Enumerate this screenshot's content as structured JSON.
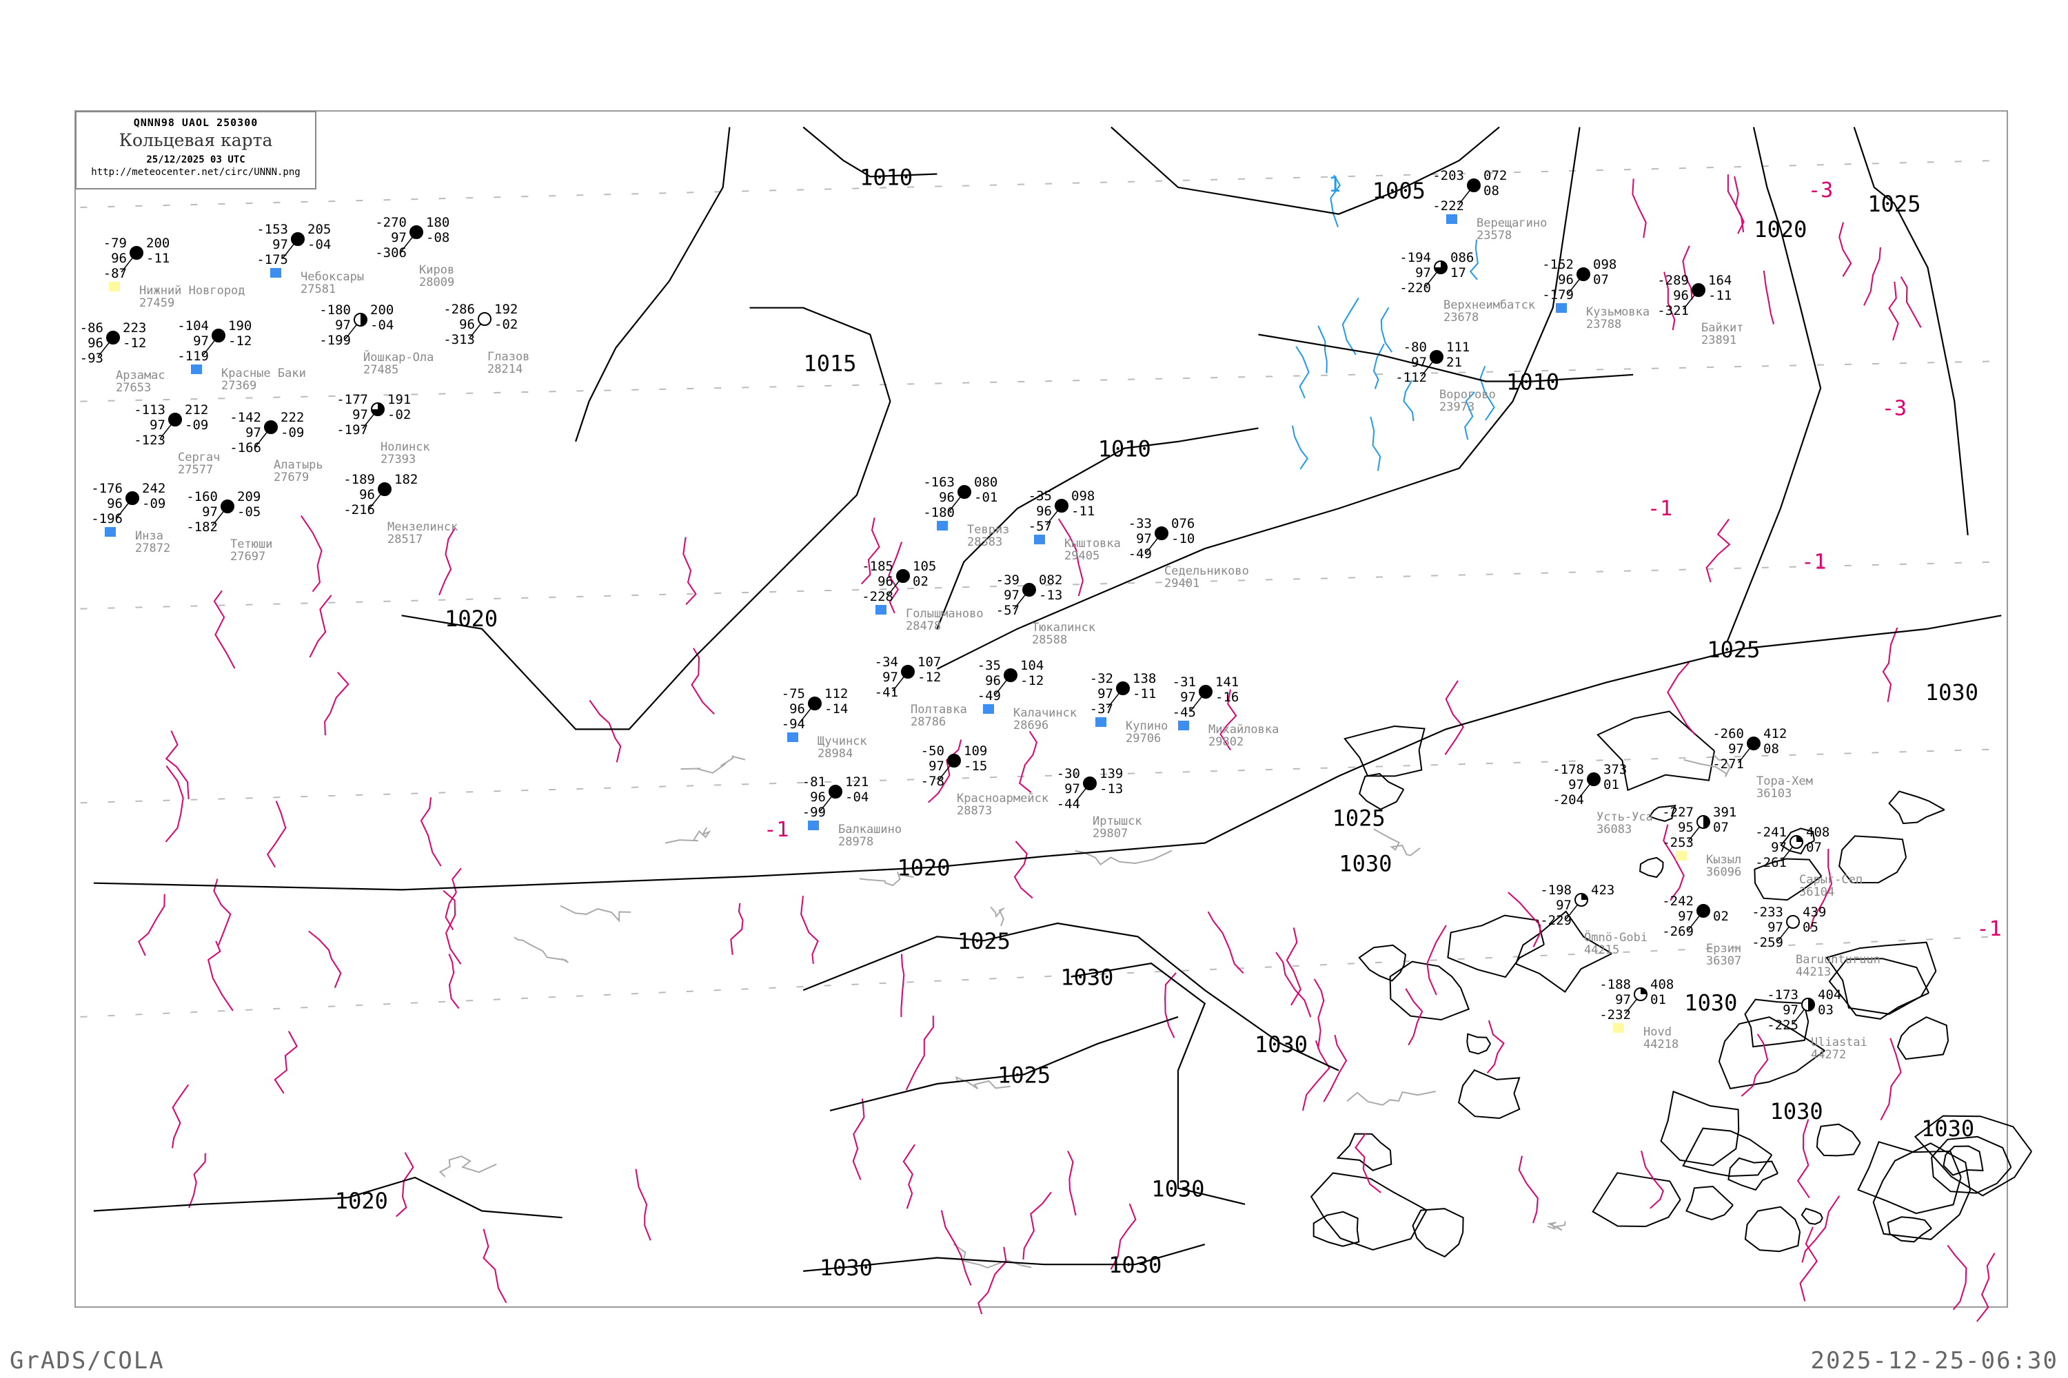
{
  "header": {
    "code_line": "QNNN98   UAOL   250300",
    "title": "Кольцевая карта",
    "datetime": "25/12/2025 03 UTC",
    "url": "http://meteocenter.net/circ/UNNN.png"
  },
  "footer": {
    "left": "GrADS/COLA",
    "right": "2025-12-25-06:30"
  },
  "colors": {
    "isobar": "#000000",
    "isotherm_negative": "#e0006e",
    "isotherm_cyan": "#1e9bf0",
    "topography": "#aaaaaa",
    "station_text": "#000000",
    "station_name": "#8a8a8a",
    "snow_cover_marker": "#3c8ff0",
    "dry_marker": "#fff9a0"
  },
  "isobar_labels": [
    "1005",
    "1010",
    "1010",
    "1010",
    "1015",
    "1020",
    "1020",
    "1020",
    "1020",
    "1025",
    "1025",
    "1025",
    "1025",
    "1025",
    "1030",
    "1030",
    "1030",
    "1030",
    "1030",
    "1030",
    "1030",
    "1030",
    "1030",
    "1030"
  ],
  "isotherm_labels": [
    "-3",
    "-3",
    "-1",
    "-1",
    "-1",
    "-1",
    "1"
  ],
  "stations": [
    {
      "name": "Верещагино",
      "index": "23578",
      "t": "-203",
      "vis": "",
      "dew": "-222",
      "p": "072",
      "tend": "08",
      "cloud": "full",
      "ground": "snow"
    },
    {
      "name": "Верхнеимбатск",
      "index": "23678",
      "t": "-194",
      "vis": "97",
      "dew": "-220",
      "p": "086",
      "tend": "17",
      "cloud": "three-quarter",
      "ground": ""
    },
    {
      "name": "Кузьмовка",
      "index": "23788",
      "t": "-152",
      "vis": "96",
      "dew": "-179",
      "p": "098",
      "tend": "07",
      "cloud": "full",
      "ground": "snow"
    },
    {
      "name": "Ворогово",
      "index": "23973",
      "t": "-80",
      "vis": "97",
      "dew": "-112",
      "p": "111",
      "tend": "21",
      "cloud": "full",
      "ground": ""
    },
    {
      "name": "Байкит",
      "index": "23891",
      "t": "-289",
      "vis": "96",
      "dew": "-321",
      "p": "164",
      "tend": "-11",
      "cloud": "full",
      "ground": ""
    },
    {
      "name": "Нижний Новгород",
      "index": "27459",
      "t": "-79",
      "vis": "96",
      "dew": "-87",
      "p": "200",
      "tend": "-11",
      "cloud": "full",
      "ground": "dry"
    },
    {
      "name": "Красные Баки",
      "index": "27369",
      "t": "-104",
      "vis": "97",
      "dew": "-119",
      "p": "190",
      "tend": "-12",
      "cloud": "full",
      "ground": "snow"
    },
    {
      "name": "Арзамас",
      "index": "27653",
      "t": "-86",
      "vis": "96",
      "dew": "-93",
      "p": "223",
      "tend": "-12",
      "cloud": "full",
      "ground": ""
    },
    {
      "name": "Сергач",
      "index": "27577",
      "t": "-113",
      "vis": "97",
      "dew": "-123",
      "p": "212",
      "tend": "-09",
      "cloud": "full",
      "ground": ""
    },
    {
      "name": "Чебоксары",
      "index": "27581",
      "t": "-153",
      "vis": "97",
      "dew": "-175",
      "p": "205",
      "tend": "-04",
      "cloud": "full",
      "ground": "snow"
    },
    {
      "name": "Йошкар-Ола",
      "index": "27485",
      "t": "-180",
      "vis": "97",
      "dew": "-199",
      "p": "200",
      "tend": "-04",
      "cloud": "half",
      "ground": ""
    },
    {
      "name": "Алатырь",
      "index": "27679",
      "t": "-142",
      "vis": "97",
      "dew": "-166",
      "p": "222",
      "tend": "-09",
      "cloud": "full",
      "ground": ""
    },
    {
      "name": "Инза",
      "index": "27872",
      "t": "-176",
      "vis": "96",
      "dew": "-196",
      "p": "242",
      "tend": "-09",
      "cloud": "full",
      "ground": "snow"
    },
    {
      "name": "Киров",
      "index": "28009",
      "t": "-270",
      "vis": "97",
      "dew": "-306",
      "p": "180",
      "tend": "-08",
      "cloud": "full",
      "ground": ""
    },
    {
      "name": "Нолинск",
      "index": "27393",
      "t": "-177",
      "vis": "97",
      "dew": "-197",
      "p": "191",
      "tend": "-02",
      "cloud": "three-quarter",
      "ground": ""
    },
    {
      "name": "Глазов",
      "index": "28214",
      "t": "-286",
      "vis": "96",
      "dew": "-313",
      "p": "192",
      "tend": "-02",
      "cloud": "empty",
      "ground": ""
    },
    {
      "name": "Тетюши",
      "index": "27697",
      "t": "-160",
      "vis": "97",
      "dew": "-182",
      "p": "209",
      "tend": "-05",
      "cloud": "full",
      "ground": ""
    },
    {
      "name": "Мензелинск",
      "index": "28517",
      "t": "-189",
      "vis": "96",
      "dew": "-216",
      "p": "182",
      "tend": "",
      "cloud": "full",
      "ground": ""
    },
    {
      "name": "Тевриз",
      "index": "28383",
      "t": "-163",
      "vis": "96",
      "dew": "-180",
      "p": "080",
      "tend": "-01",
      "cloud": "full",
      "ground": "snow"
    },
    {
      "name": "Голышманово",
      "index": "28478",
      "t": "-185",
      "vis": "96",
      "dew": "-228",
      "p": "105",
      "tend": "02",
      "cloud": "full",
      "ground": "snow"
    },
    {
      "name": "Тюкалинск",
      "index": "28588",
      "t": "-39",
      "vis": "97",
      "dew": "-57",
      "p": "082",
      "tend": "-13",
      "cloud": "full",
      "ground": ""
    },
    {
      "name": "Калачинск",
      "index": "28696",
      "t": "-35",
      "vis": "96",
      "dew": "-49",
      "p": "104",
      "tend": "-12",
      "cloud": "full",
      "ground": "snow"
    },
    {
      "name": "Кыштовка",
      "index": "29405",
      "t": "-35",
      "vis": "96",
      "dew": "-57",
      "p": "098",
      "tend": "-11",
      "cloud": "full",
      "ground": "snow"
    },
    {
      "name": "Седельниково",
      "index": "29401",
      "t": "-33",
      "vis": "97",
      "dew": "-49",
      "p": "076",
      "tend": "-10",
      "cloud": "full",
      "ground": ""
    },
    {
      "name": "Полтавка",
      "index": "28786",
      "t": "-34",
      "vis": "97",
      "dew": "-41",
      "p": "107",
      "tend": "-12",
      "cloud": "full",
      "ground": ""
    },
    {
      "name": "Щучинск",
      "index": "28984",
      "t": "-75",
      "vis": "96",
      "dew": "-94",
      "p": "112",
      "tend": "-14",
      "cloud": "full",
      "ground": "snow"
    },
    {
      "name": "Балкашино",
      "index": "28978",
      "t": "-81",
      "vis": "96",
      "dew": "-99",
      "p": "121",
      "tend": "-04",
      "cloud": "full",
      "ground": "snow"
    },
    {
      "name": "Красноармейск",
      "index": "28873",
      "t": "-50",
      "vis": "97",
      "dew": "-78",
      "p": "109",
      "tend": "-15",
      "cloud": "full",
      "ground": ""
    },
    {
      "name": "Купино",
      "index": "29706",
      "t": "-32",
      "vis": "97",
      "dew": "-37",
      "p": "138",
      "tend": "-11",
      "cloud": "full",
      "ground": "snow"
    },
    {
      "name": "Иртышск",
      "index": "29807",
      "t": "-30",
      "vis": "97",
      "dew": "-44",
      "p": "139",
      "tend": "-13",
      "cloud": "full",
      "ground": ""
    },
    {
      "name": "Михайловка",
      "index": "29802",
      "t": "-31",
      "vis": "97",
      "dew": "-45",
      "p": "141",
      "tend": "-16",
      "cloud": "full",
      "ground": "snow"
    },
    {
      "name": "Тора-Хем",
      "index": "36103",
      "t": "-260",
      "vis": "97",
      "dew": "-271",
      "p": "412",
      "tend": "08",
      "cloud": "full",
      "ground": ""
    },
    {
      "name": "Кызыл",
      "index": "36096",
      "t": "-227",
      "vis": "95",
      "dew": "-253",
      "p": "391",
      "tend": "07",
      "cloud": "half",
      "ground": "dry"
    },
    {
      "name": "Сарыг-Сеп",
      "index": "36104",
      "t": "-241",
      "vis": "97",
      "dew": "-261",
      "p": "408",
      "tend": "07",
      "cloud": "quarter",
      "ground": ""
    },
    {
      "name": "Усть-Уса",
      "index": "36083",
      "t": "-178",
      "vis": "97",
      "dew": "-204",
      "p": "373",
      "tend": "01",
      "cloud": "full",
      "ground": ""
    },
    {
      "name": "Ерзин",
      "index": "36307",
      "t": "-242",
      "vis": "97",
      "dew": "-269",
      "p": "",
      "tend": "02",
      "cloud": "full",
      "ground": ""
    },
    {
      "name": "Baruunturuun",
      "index": "44213",
      "t": "-233",
      "vis": "97",
      "dew": "-259",
      "p": "439",
      "tend": "05",
      "cloud": "empty",
      "ground": ""
    },
    {
      "name": "Hovd",
      "index": "44218",
      "t": "-188",
      "vis": "97",
      "dew": "-232",
      "p": "408",
      "tend": "01",
      "cloud": "quarter",
      "ground": "dry"
    },
    {
      "name": "Uliastai",
      "index": "44272",
      "t": "-173",
      "vis": "97",
      "dew": "-225",
      "p": "404",
      "tend": "03",
      "cloud": "half",
      "ground": ""
    },
    {
      "name": "Ömnö-Gobi",
      "index": "44215",
      "t": "-198",
      "vis": "97",
      "dew": "-229",
      "p": "423",
      "tend": "",
      "cloud": "quarter",
      "ground": ""
    }
  ]
}
